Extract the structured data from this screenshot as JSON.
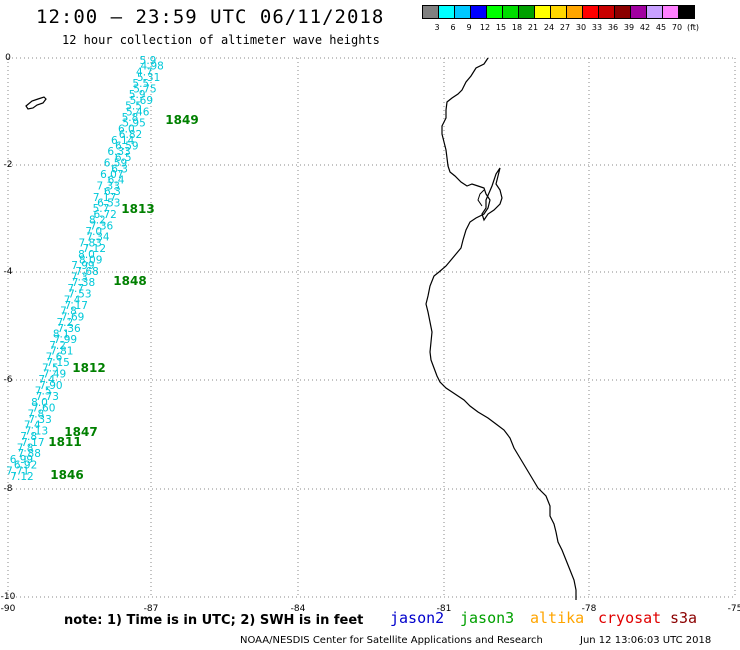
{
  "header": {
    "title": "12:00 – 23:59 UTC 06/11/2018",
    "subtitle": "12 hour collection of altimeter wave heights"
  },
  "color_scale": {
    "colors": [
      "#808080",
      "#00ffff",
      "#00c8ff",
      "#0000ff",
      "#00ff00",
      "#00dd00",
      "#00a000",
      "#ffff00",
      "#ffd700",
      "#ffa500",
      "#ff0000",
      "#c80000",
      "#8b0000",
      "#a000a0",
      "#c8a0ff",
      "#ff80ff",
      "#000000"
    ],
    "labels": [
      "3",
      "6",
      "9",
      "12",
      "15",
      "18",
      "21",
      "24",
      "27",
      "30",
      "33",
      "36",
      "39",
      "42",
      "45",
      "70",
      "(ft)"
    ]
  },
  "axes": {
    "y_labels": [
      "0",
      "-2",
      "-4",
      "-6",
      "-8",
      "-10"
    ],
    "x_labels": [
      "-90",
      "-87",
      "-84",
      "-81",
      "-78",
      "-75"
    ]
  },
  "track_values": [
    "5.9",
    "4.98",
    "4.7",
    "5.31",
    "5.5",
    "5.75",
    "5.9",
    "5.69",
    "5.5",
    "5.46",
    "5.8",
    "5.95",
    "6.0",
    "6.82",
    "6.14",
    "6.59",
    "6.33",
    "6.5",
    "6.59",
    "6.3",
    "6.07",
    "6.4",
    "7.33",
    "6.3",
    "7.17",
    "6.53",
    "5.7",
    "6.72",
    "8.2",
    "7.36",
    "7.0",
    "7.34",
    "7.83",
    "7.12",
    "8.0",
    "8.09",
    "7.99",
    "7.68",
    "7.3",
    "7.38",
    "7.7",
    "7.53",
    "7.4",
    "7.17",
    "7.8",
    "7.69",
    "7.2",
    "7.36",
    "8.1",
    "7.99",
    "7.2",
    "7.81",
    "7.6",
    "7.15",
    "7.5",
    "7.49",
    "7.4",
    "7.90",
    "7.5",
    "7.73",
    "8.0",
    "7.60",
    "7.8",
    "7.33",
    "7.4",
    "7.13",
    "7.8",
    "7.17",
    "7.8",
    "7.88",
    "6.99",
    "6.92",
    "7.71",
    "7.12"
  ],
  "pass_labels": [
    "1849",
    "1813",
    "1848",
    "1812",
    "1847",
    "1811",
    "1846"
  ],
  "note": "note: 1) Time is in UTC; 2) SWH is in feet",
  "satellites": [
    {
      "name": "jason2",
      "color": "#0000cc"
    },
    {
      "name": "jason3",
      "color": "#00a000"
    },
    {
      "name": "altika",
      "color": "#ffa500"
    },
    {
      "name": "cryosat",
      "color": "#e00000"
    },
    {
      "name": "s3a",
      "color": "#8b0000"
    }
  ],
  "footer": {
    "credit": "NOAA/NESDIS Center for Satellite Applications and Research",
    "timestamp": "Jun 12 13:06:03 UTC 2018"
  },
  "colors": {
    "track": "#00c8d8",
    "pass_label": "#008000",
    "coastline": "#000000",
    "grid": "#888888"
  }
}
